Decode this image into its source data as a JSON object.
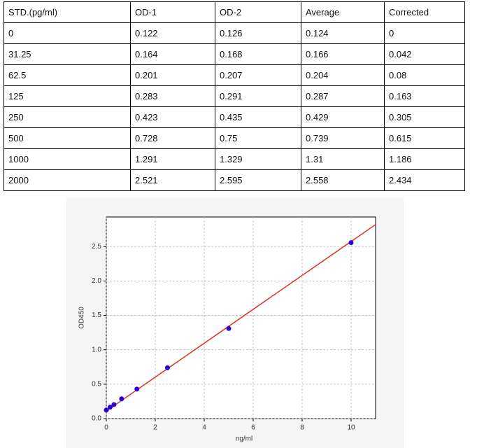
{
  "table": {
    "header": [
      "STD.(pg/ml)",
      "OD-1",
      "OD-2",
      "Average",
      "Corrected"
    ],
    "rows": [
      [
        "0",
        "0.122",
        "0.126",
        "0.124",
        "0"
      ],
      [
        "31.25",
        "0.164",
        "0.168",
        "0.166",
        "0.042"
      ],
      [
        "62.5",
        "0.201",
        "0.207",
        "0.204",
        "0.08"
      ],
      [
        "125",
        "0.283",
        "0.291",
        "0.287",
        "0.163"
      ],
      [
        "250",
        "0.423",
        "0.435",
        "0.429",
        "0.305"
      ],
      [
        "500",
        "0.728",
        "0.75",
        "0.739",
        "0.615"
      ],
      [
        "1000",
        "1.291",
        "1.329",
        "1.31",
        "1.186"
      ],
      [
        "2000",
        "2.521",
        "2.595",
        "2.558",
        "2.434"
      ]
    ]
  },
  "chart_data": {
    "type": "scatter",
    "x_label": "ng/ml",
    "y_label": "OD450",
    "x": [
      0,
      0.156,
      0.3125,
      0.625,
      1.25,
      2.5,
      5,
      10
    ],
    "values": [
      0.124,
      0.166,
      0.204,
      0.287,
      0.429,
      0.739,
      1.31,
      2.558
    ],
    "color": "#2b00d4",
    "fit": {
      "x": [
        0,
        11
      ],
      "values": [
        0.11,
        2.82
      ],
      "color": "#e03020"
    },
    "xlim": [
      0,
      11
    ],
    "ylim": [
      0,
      2.93
    ],
    "xticks": [
      0,
      2,
      4,
      6,
      8,
      10
    ],
    "yticks": [
      {
        "value": 0,
        "label": "0.0"
      },
      0.5,
      {
        "value": 1,
        "label": "1.0"
      },
      1.5,
      {
        "value": 2,
        "label": "2.0"
      },
      2.5
    ],
    "grid": true
  }
}
